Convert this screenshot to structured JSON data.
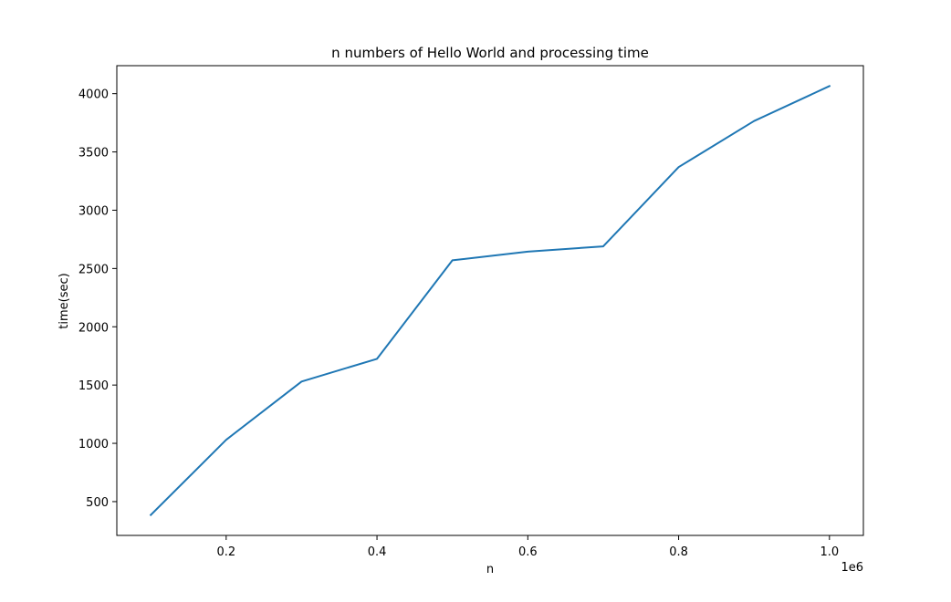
{
  "chart_data": {
    "type": "line",
    "title": "n numbers of Hello World and processing time",
    "xlabel": "n",
    "ylabel": "time(sec)",
    "x_offset_label": "1e6",
    "x_tick_labels": [
      "0.2",
      "0.4",
      "0.6",
      "0.8",
      "1.0"
    ],
    "x_ticks": [
      200000,
      400000,
      600000,
      800000,
      1000000
    ],
    "y_tick_labels": [
      "500",
      "1000",
      "1500",
      "2000",
      "2500",
      "3000",
      "3500",
      "4000"
    ],
    "y_ticks": [
      500,
      1000,
      1500,
      2000,
      2500,
      3000,
      3500,
      4000
    ],
    "xlim": [
      55000,
      1045000
    ],
    "ylim": [
      210,
      4240
    ],
    "grid": false,
    "series": [
      {
        "color": "#1f77b4",
        "x": [
          100000,
          200000,
          300000,
          400000,
          500000,
          600000,
          700000,
          800000,
          900000,
          1000000
        ],
        "y": [
          385,
          1030,
          1530,
          1725,
          2570,
          2645,
          2690,
          3370,
          3765,
          4065
        ]
      }
    ]
  }
}
